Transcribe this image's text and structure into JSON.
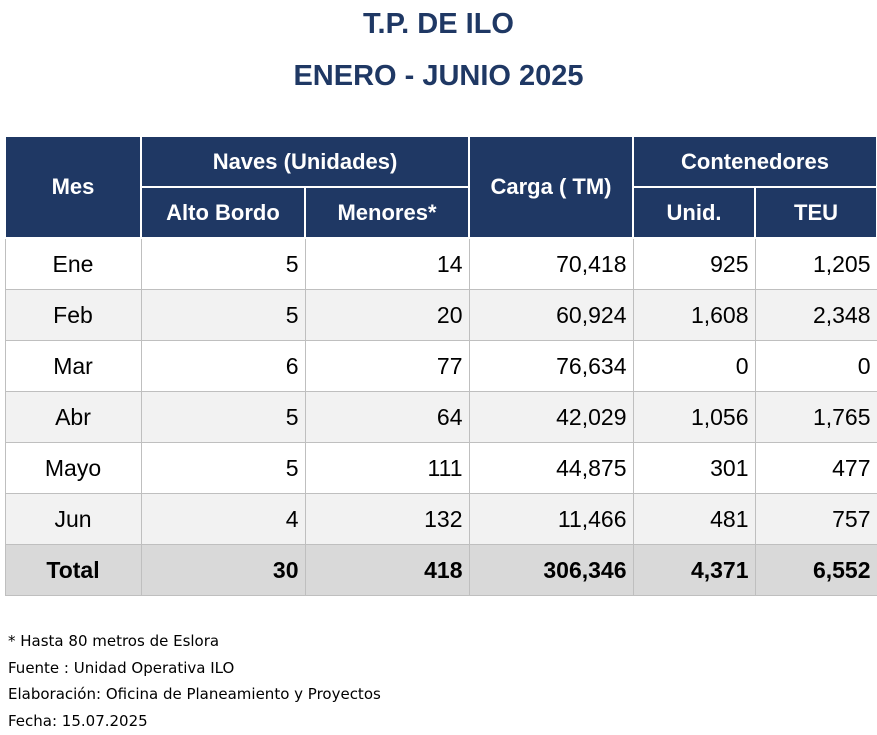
{
  "title_line1": "T.P. DE ILO",
  "title_line2": "ENERO - JUNIO 2025",
  "table": {
    "headers": {
      "mes": "Mes",
      "naves": "Naves (Unidades)",
      "alto_bordo": "Alto Bordo",
      "menores": "Menores*",
      "carga": "Carga ( TM)",
      "contenedores": "Contenedores",
      "unid": "Unid.",
      "teu": "TEU"
    },
    "rows": [
      {
        "mes": "Ene",
        "alto_bordo": "5",
        "menores": "14",
        "carga": "70,418",
        "unid": "925",
        "teu": "1,205"
      },
      {
        "mes": "Feb",
        "alto_bordo": "5",
        "menores": "20",
        "carga": "60,924",
        "unid": "1,608",
        "teu": "2,348"
      },
      {
        "mes": "Mar",
        "alto_bordo": "6",
        "menores": "77",
        "carga": "76,634",
        "unid": "0",
        "teu": "0"
      },
      {
        "mes": "Abr",
        "alto_bordo": "5",
        "menores": "64",
        "carga": "42,029",
        "unid": "1,056",
        "teu": "1,765"
      },
      {
        "mes": "Mayo",
        "alto_bordo": "5",
        "menores": "111",
        "carga": "44,875",
        "unid": "301",
        "teu": "477"
      },
      {
        "mes": "Jun",
        "alto_bordo": "4",
        "menores": "132",
        "carga": "11,466",
        "unid": "481",
        "teu": "757"
      }
    ],
    "total": {
      "mes": "Total",
      "alto_bordo": "30",
      "menores": "418",
      "carga": "306,346",
      "unid": "4,371",
      "teu": "6,552"
    }
  },
  "notes": {
    "footnote": "* Hasta 80 metros de Eslora",
    "fuente": "Fuente : Unidad Operativa ILO",
    "elaboracion": "Elaboración: Oficina de Planeamiento y Proyectos",
    "fecha": "Fecha: 15.07.2025"
  },
  "colors": {
    "header_bg": "#1f3864",
    "title_color": "#1f3864",
    "total_bg": "#d9d9d9",
    "stripe_bg": "#f2f2f2"
  }
}
